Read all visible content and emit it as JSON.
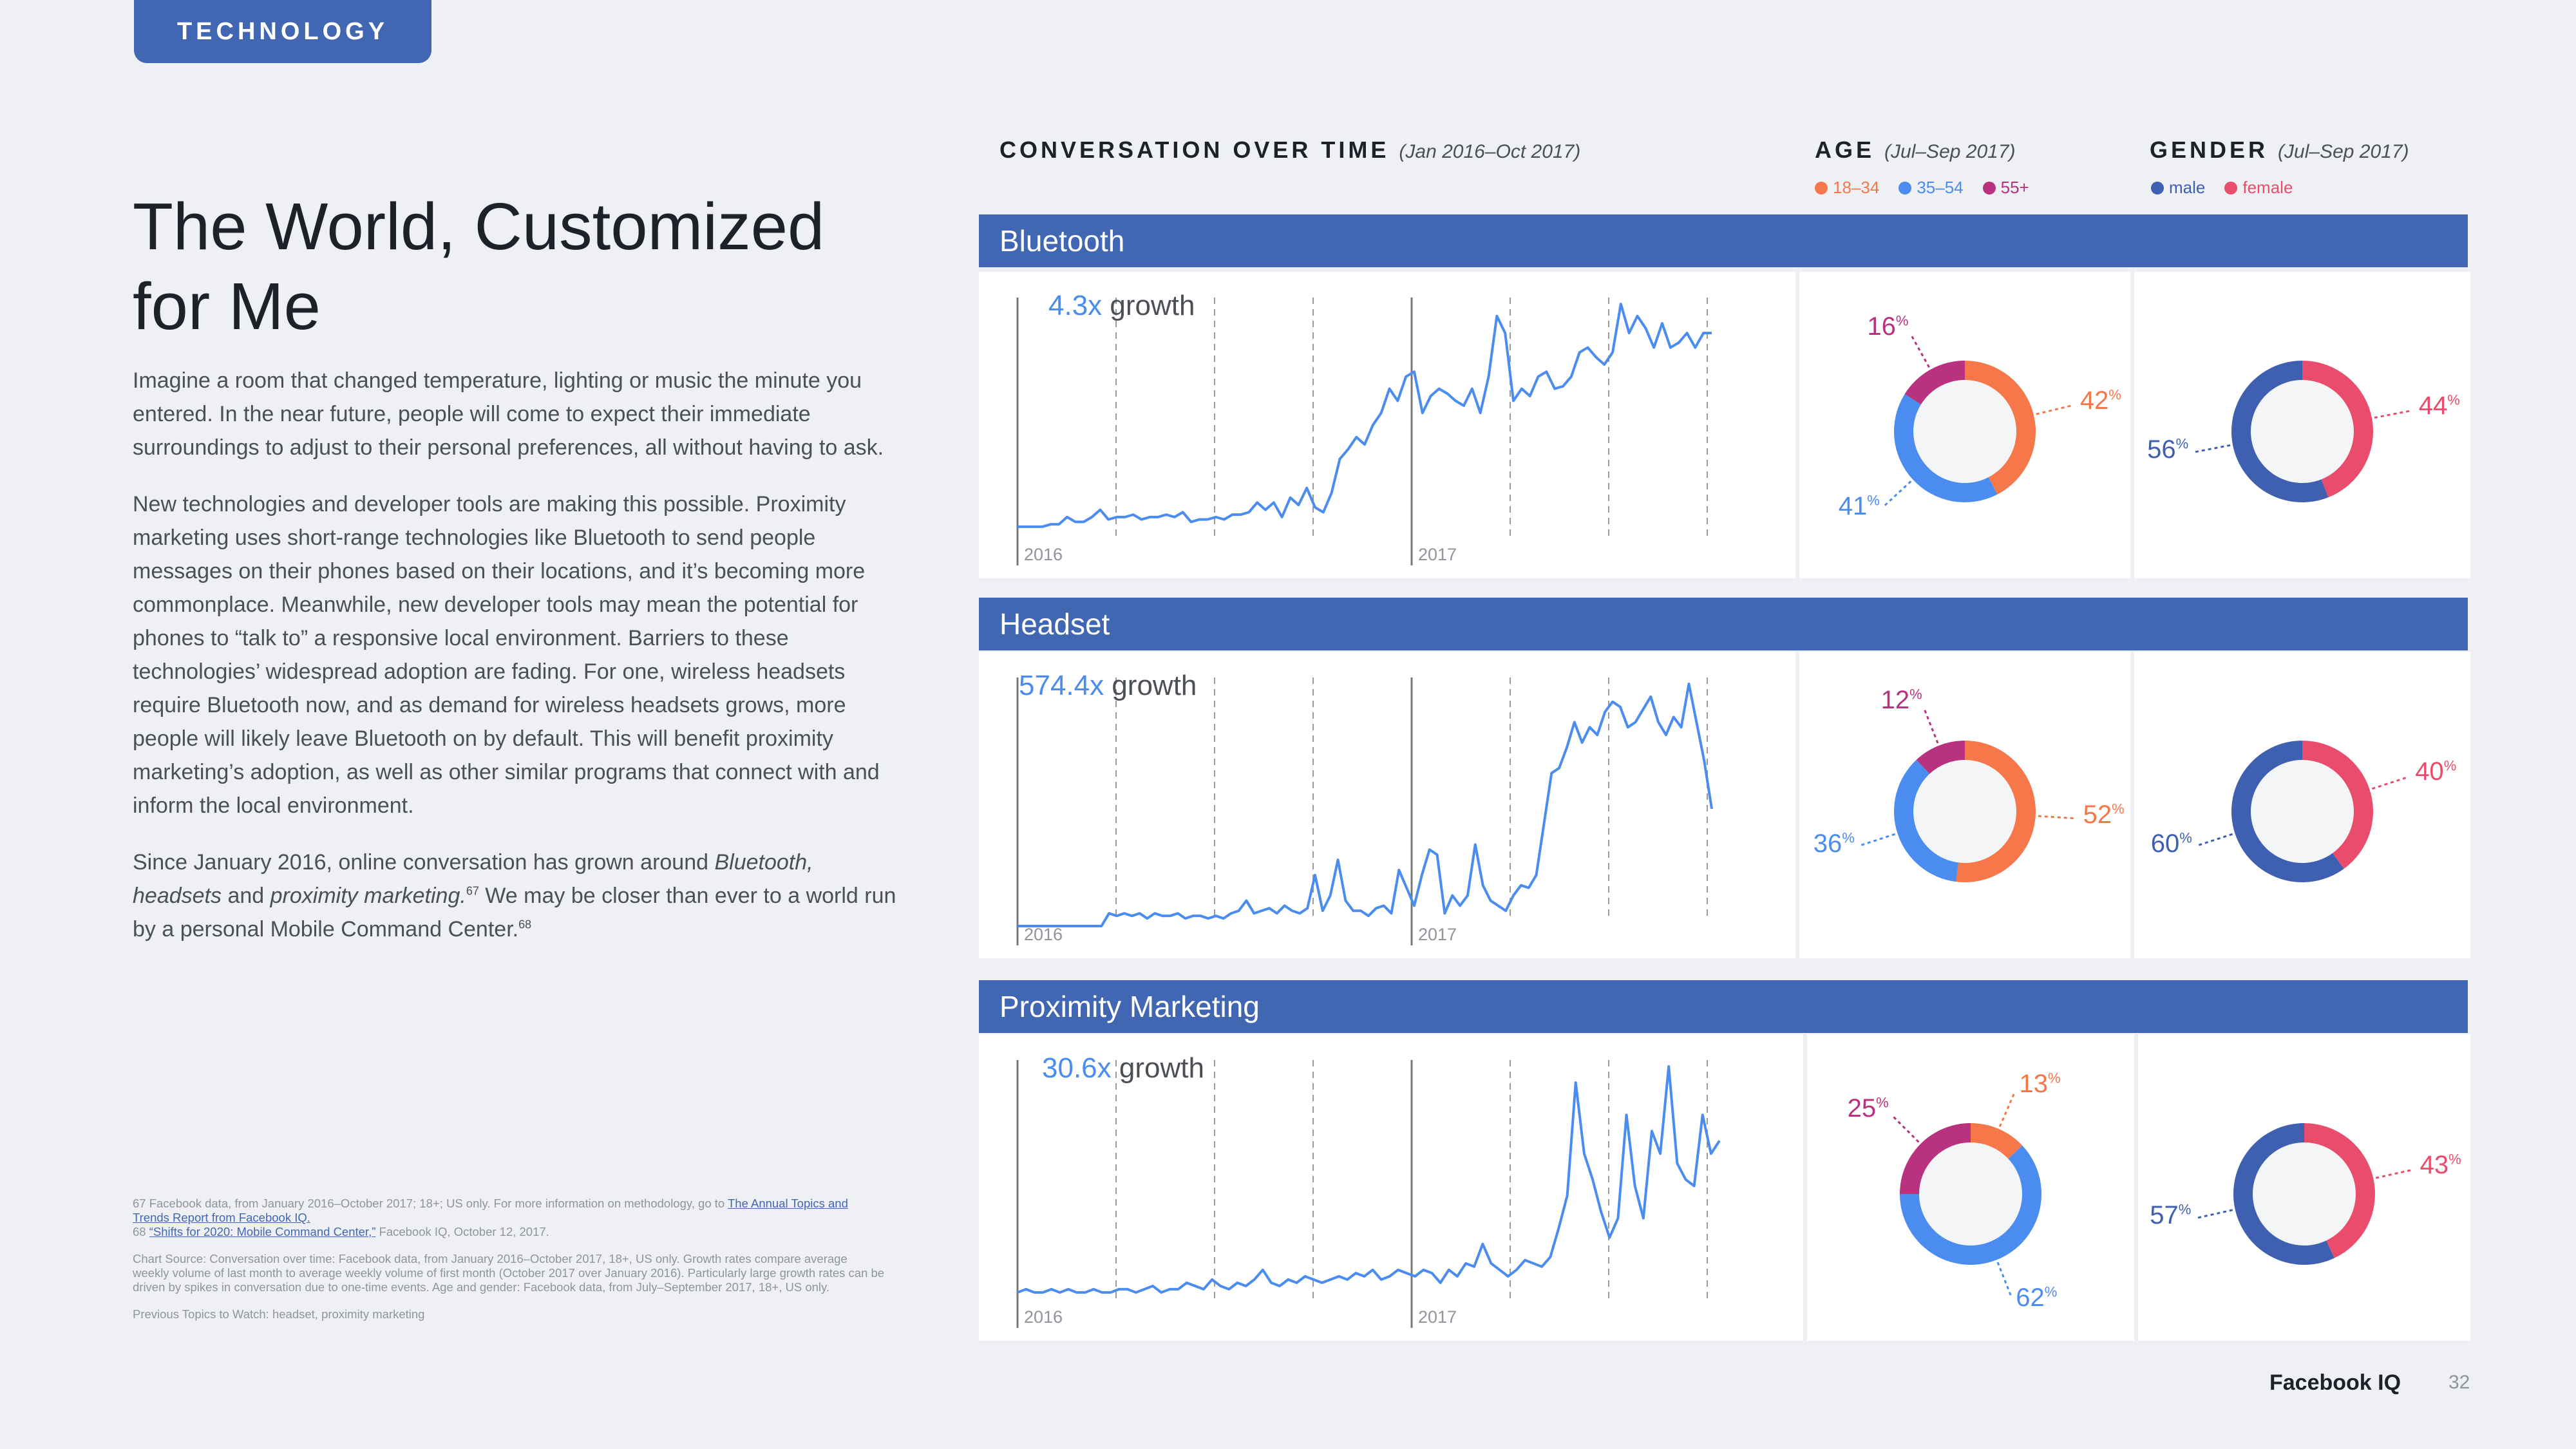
{
  "tag": "TECHNOLOGY",
  "title_line1": "The World, Customized",
  "title_line2": "for Me",
  "body": {
    "p1": "Imagine a room that changed temperature, lighting or music the minute you entered. In the near future, people will come to expect their immediate surroundings to adjust to their personal preferences, all without having to ask.",
    "p2": "New technologies and developer tools are making this possible. Proximity marketing uses short-range technologies like Bluetooth to send people messages on their phones based on their locations, and it’s becoming more commonplace. Meanwhile, new developer tools may mean the potential for phones to “talk to” a responsive local environment. Barriers to these technologies’ widespread adoption are fading. For one, wireless headsets require Bluetooth now, and as demand for wireless headsets grows, more people will likely leave Bluetooth on by default. This will benefit proximity marketing’s adoption, as well as other similar programs that connect with and inform the local environment.",
    "p3_a": "Since January 2016, online conversation has grown around ",
    "p3_em1": "Bluetooth, headsets",
    "p3_b": " and ",
    "p3_em2": "proximity marketing.",
    "p3_sup1": "67",
    "p3_c": " We may be closer than ever to a world run by a personal Mobile Command Center.",
    "p3_sup2": "68"
  },
  "notes": {
    "n67_a": "67  Facebook data, from January 2016–October 2017; 18+; US only. For more information on methodology, go to ",
    "n67_link": "The Annual Topics and Trends Report from Facebook IQ.",
    "n68_num": "68  ",
    "n68_link": "“Shifts for 2020: Mobile Command Center,”",
    "n68_b": " Facebook IQ, October 12, 2017.",
    "chart_source": "Chart Source:  Conversation over time: Facebook data, from January 2016–October 2017, 18+, US only. Growth rates compare average weekly volume of last month to average weekly volume of first month (October 2017 over January 2016). Particularly large growth rates can be driven by spikes in conversation due to one-time events. Age and gender: Facebook data, from July–September 2017, 18+, US only.",
    "previous": "Previous Topics to Watch: headset, proximity marketing"
  },
  "headers": {
    "conv_title": "CONVERSATION OVER TIME",
    "conv_range": "(Jan 2016–Oct 2017)",
    "age_title": "AGE",
    "age_range": "(Jul–Sep 2017)",
    "gender_title": "GENDER",
    "gender_range": "(Jul–Sep 2017)"
  },
  "legend": {
    "age": [
      "18–34",
      "35–54",
      "55+"
    ],
    "gender": [
      "male",
      "female"
    ]
  },
  "colors": {
    "accent": "#4267b2",
    "line": "#4a8cf0",
    "age_18_34": "#f5774a",
    "age_35_54": "#4a8cf0",
    "age_55_plus": "#b8327f",
    "male": "#3f5fb0",
    "female": "#ea4d6b"
  },
  "pct_suffix": "%",
  "chart_data": [
    {
      "type": "line",
      "title": "Bluetooth",
      "growth": "4.3x",
      "growth_label": "growth",
      "year_labels": [
        "2016",
        "2017"
      ],
      "series": [
        {
          "name": "conversation",
          "values": [
            8,
            8,
            8,
            8,
            9,
            9,
            12,
            10,
            10,
            12,
            15,
            11,
            12,
            12,
            13,
            11,
            12,
            12,
            13,
            12,
            14,
            10,
            11,
            11,
            12,
            11,
            13,
            13,
            14,
            18,
            15,
            18,
            12,
            20,
            17,
            24,
            16,
            14,
            22,
            36,
            40,
            45,
            42,
            50,
            55,
            65,
            60,
            70,
            72,
            55,
            62,
            65,
            63,
            60,
            58,
            65,
            55,
            70,
            95,
            88,
            60,
            65,
            62,
            70,
            72,
            65,
            66,
            70,
            80,
            82,
            78,
            75,
            80,
            100,
            88,
            95,
            90,
            82,
            92,
            82,
            84,
            88,
            82,
            88,
            88
          ]
        }
      ],
      "age": {
        "18-34": 42,
        "35-54": 41,
        "55+": 16
      },
      "gender": {
        "male": 56,
        "female": 44
      }
    },
    {
      "type": "line",
      "title": "Headset",
      "growth": "574.4x",
      "growth_label": "growth",
      "year_labels": [
        "2016",
        "2017"
      ],
      "series": [
        {
          "name": "conversation",
          "values": [
            0,
            0,
            0,
            0,
            0,
            0,
            0,
            0,
            0,
            0,
            0,
            0,
            5,
            4,
            5,
            4,
            5,
            3,
            5,
            4,
            4,
            5,
            3,
            4,
            4,
            3,
            4,
            3,
            5,
            6,
            10,
            5,
            6,
            7,
            5,
            8,
            6,
            5,
            7,
            20,
            6,
            12,
            26,
            10,
            6,
            6,
            4,
            7,
            8,
            5,
            22,
            15,
            8,
            20,
            30,
            28,
            5,
            12,
            8,
            12,
            32,
            16,
            10,
            8,
            6,
            12,
            16,
            15,
            20,
            40,
            60,
            62,
            70,
            80,
            72,
            78,
            75,
            84,
            88,
            86,
            78,
            80,
            85,
            90,
            80,
            75,
            82,
            78,
            95,
            80,
            65,
            46
          ]
        }
      ],
      "age": {
        "18-34": 52,
        "35-54": 36,
        "55+": 12
      },
      "gender": {
        "male": 60,
        "female": 40
      }
    },
    {
      "type": "line",
      "title": "Proximity Marketing",
      "growth": "30.6x",
      "growth_label": "growth",
      "year_labels": [
        "2016",
        "2017"
      ],
      "series": [
        {
          "name": "conversation",
          "values": [
            5,
            6,
            5,
            5,
            6,
            5,
            6,
            5,
            5,
            6,
            5,
            5,
            6,
            6,
            5,
            6,
            7,
            5,
            6,
            6,
            8,
            7,
            6,
            9,
            7,
            6,
            8,
            7,
            9,
            12,
            8,
            7,
            9,
            8,
            10,
            9,
            8,
            9,
            10,
            9,
            11,
            10,
            12,
            9,
            10,
            12,
            11,
            10,
            12,
            11,
            8,
            12,
            10,
            14,
            13,
            20,
            14,
            12,
            10,
            12,
            15,
            14,
            13,
            16,
            25,
            35,
            70,
            48,
            40,
            30,
            22,
            28,
            60,
            38,
            28,
            55,
            48,
            75,
            45,
            40,
            38,
            60,
            48,
            52
          ]
        }
      ],
      "age": {
        "18-34": 13,
        "35-54": 62,
        "55+": 25
      },
      "gender": {
        "male": 57,
        "female": 43
      }
    }
  ],
  "footer": {
    "brand": "Facebook IQ",
    "page": "32"
  }
}
